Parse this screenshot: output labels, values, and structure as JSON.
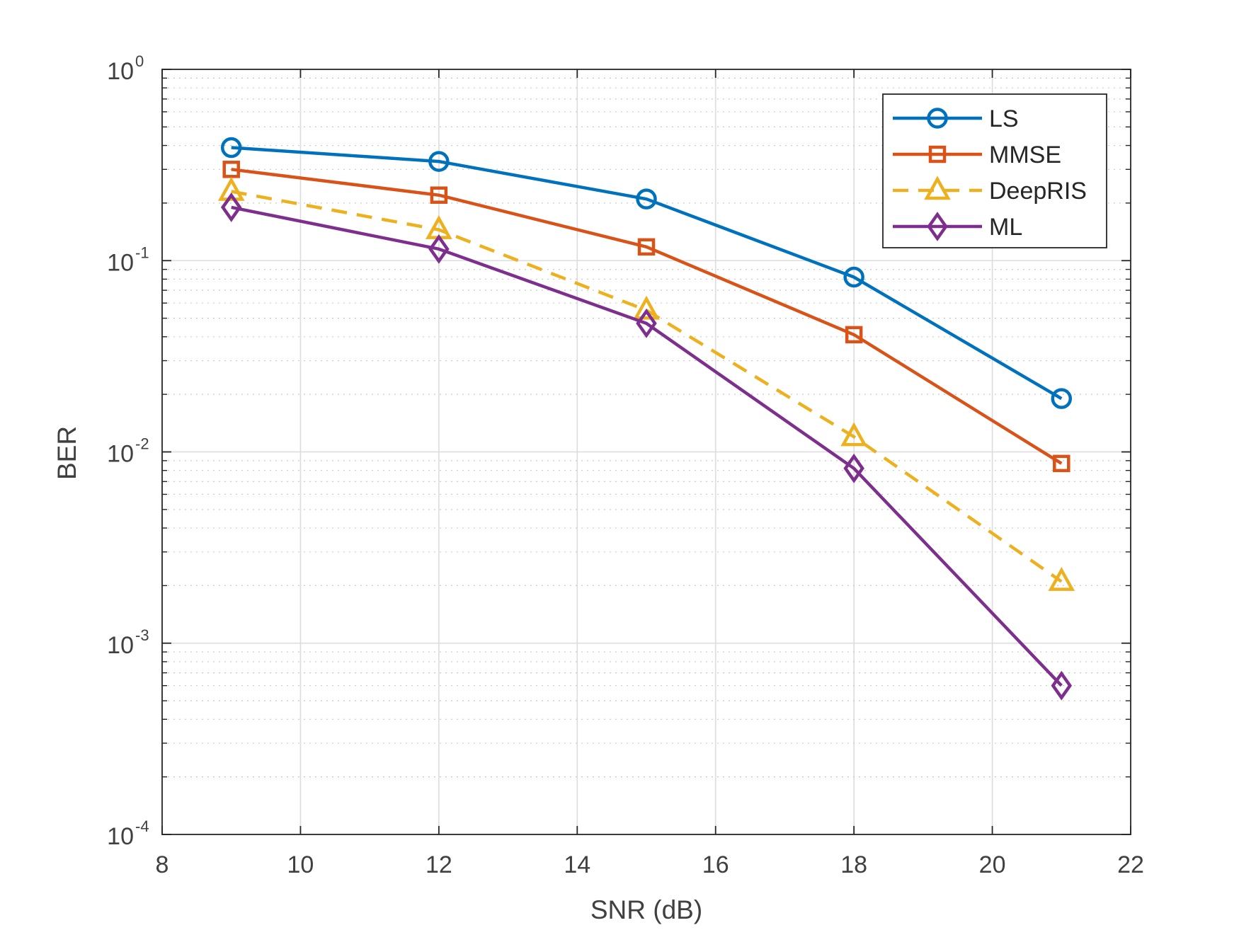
{
  "chart_data": {
    "type": "line",
    "title": "",
    "xlabel": "SNR (dB)",
    "ylabel": "BER",
    "x_scale": "linear",
    "y_scale": "log",
    "xlim": [
      8,
      22
    ],
    "ylim": [
      0.0001,
      1
    ],
    "x_ticks": [
      8,
      10,
      12,
      14,
      16,
      18,
      20,
      22
    ],
    "x_tick_labels": [
      "8",
      "10",
      "12",
      "14",
      "16",
      "18",
      "20",
      "22"
    ],
    "y_ticks": [
      {
        "base": "10",
        "exp": "-4"
      },
      {
        "base": "10",
        "exp": "-3"
      },
      {
        "base": "10",
        "exp": "-2"
      },
      {
        "base": "10",
        "exp": "-1"
      },
      {
        "base": "10",
        "exp": "0"
      }
    ],
    "grid": true,
    "minor_grid": true,
    "legend_position": "top-right",
    "x": [
      9,
      12,
      15,
      18,
      21
    ],
    "series": [
      {
        "name": "LS",
        "color": "#0072BD",
        "marker": "circle",
        "line_style": "solid",
        "values": [
          0.39,
          0.33,
          0.21,
          0.082,
          0.019
        ]
      },
      {
        "name": "MMSE",
        "color": "#D95319",
        "marker": "square",
        "line_style": "solid",
        "values": [
          0.3,
          0.22,
          0.118,
          0.041,
          0.0087
        ]
      },
      {
        "name": "DeepRIS",
        "color": "#EDB120",
        "marker": "triangle",
        "line_style": "dashed",
        "values": [
          0.23,
          0.145,
          0.055,
          0.012,
          0.0021
        ]
      },
      {
        "name": "ML",
        "color": "#7E2F8E",
        "marker": "diamond",
        "line_style": "solid",
        "values": [
          0.19,
          0.115,
          0.047,
          0.0082,
          0.0006
        ]
      }
    ]
  }
}
